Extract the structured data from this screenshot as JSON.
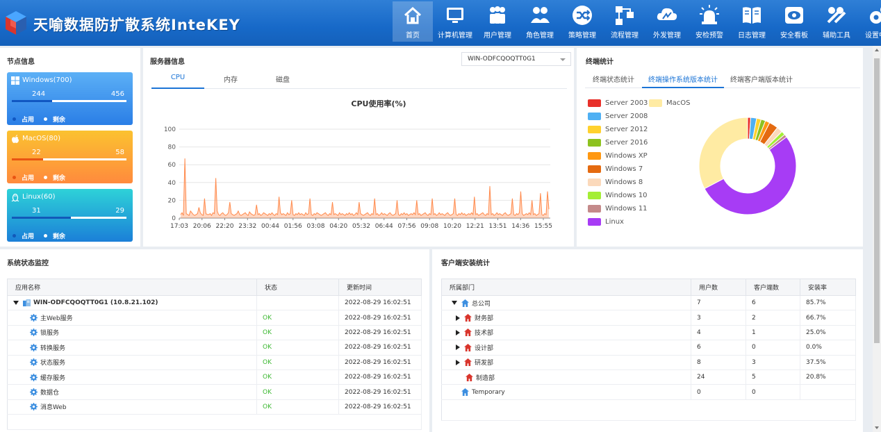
{
  "app": {
    "title": "天喻数据防扩散系统InteKEY"
  },
  "nav": [
    {
      "label": "首页",
      "icon": "home-icon",
      "active": true
    },
    {
      "label": "计算机管理",
      "icon": "monitor-icon",
      "active": false
    },
    {
      "label": "用户管理",
      "icon": "users-icon",
      "active": false
    },
    {
      "label": "角色管理",
      "icon": "roles-icon",
      "active": false
    },
    {
      "label": "策略管理",
      "icon": "shuffle-icon",
      "active": false
    },
    {
      "label": "流程管理",
      "icon": "flow-icon",
      "active": false
    },
    {
      "label": "外发管理",
      "icon": "cloud-icon",
      "active": false
    },
    {
      "label": "安检预警",
      "icon": "alarm-icon",
      "active": false
    },
    {
      "label": "日志管理",
      "icon": "book-icon",
      "active": false
    },
    {
      "label": "安全看板",
      "icon": "dashboard-icon",
      "active": false
    },
    {
      "label": "辅助工具",
      "icon": "tools-icon",
      "active": false
    },
    {
      "label": "设置中心",
      "icon": "settings-icon",
      "active": false
    }
  ],
  "node_info": {
    "title": "节点信息",
    "legend_used": "占用",
    "legend_free": "剩余",
    "cards": [
      {
        "name": "Windows(700)",
        "used": "244",
        "free": "456",
        "used_fraction": 0.349,
        "icon": "windows-icon"
      },
      {
        "name": "MacOS(80)",
        "used": "22",
        "free": "58",
        "used_fraction": 0.275,
        "icon": "apple-icon"
      },
      {
        "name": "Linux(60)",
        "used": "31",
        "free": "29",
        "used_fraction": 0.517,
        "icon": "linux-icon"
      }
    ]
  },
  "server_info": {
    "title": "服务器信息",
    "server_select": "WIN-ODFCQOQTT0G1",
    "tabs": [
      "CPU",
      "内存",
      "磁盘"
    ],
    "active_tab": 0
  },
  "chart_data": [
    {
      "type": "line",
      "title": "CPU使用率(%)",
      "xlabel": "",
      "ylabel": "",
      "ylim": [
        0,
        100
      ],
      "yticks": [
        0,
        20,
        40,
        60,
        80,
        100
      ],
      "x_ticks": [
        "17:03",
        "20:06",
        "22:20",
        "23:32",
        "00:44",
        "01:56",
        "03:08",
        "04:20",
        "05:32",
        "06:44",
        "07:56",
        "09:08",
        "10:20",
        "12:21",
        "13:51",
        "14:36",
        "15:55"
      ],
      "grid": true,
      "color": "#ff8a4c",
      "series": [
        {
          "values": [
            4,
            6,
            3,
            67,
            5,
            4,
            3,
            8,
            6,
            4,
            3,
            4,
            5,
            12,
            6,
            4,
            3,
            22,
            5,
            4,
            4,
            5,
            3,
            6,
            5,
            45,
            8,
            4,
            3,
            5,
            6,
            4,
            3,
            4,
            6,
            18,
            5,
            4,
            3,
            4,
            5,
            8,
            4,
            3,
            4,
            5,
            6,
            4,
            3,
            7,
            5,
            4,
            3,
            4,
            15,
            4,
            5,
            3,
            4,
            6,
            5,
            4,
            3,
            5,
            4,
            6,
            4,
            3,
            5,
            4,
            24,
            6,
            4,
            5,
            4,
            3,
            6,
            4,
            5,
            20,
            4,
            3,
            5,
            4,
            6,
            4,
            5,
            4,
            3,
            6,
            4,
            5,
            22,
            4,
            3,
            5,
            4,
            6,
            5,
            4,
            3,
            4,
            5,
            6,
            4,
            3,
            5,
            4,
            18,
            4,
            5,
            4,
            3,
            6,
            4,
            5,
            4,
            3,
            5,
            4,
            6,
            4,
            5,
            3,
            4,
            6,
            4,
            18,
            5,
            4,
            3,
            4,
            5,
            6,
            4,
            3,
            5,
            4,
            22,
            4,
            5,
            3,
            4,
            6,
            4,
            5,
            4,
            3,
            5,
            6,
            4,
            3,
            4,
            5,
            20,
            4,
            3,
            5,
            4,
            6,
            4,
            5,
            3,
            4,
            5,
            4,
            6,
            4,
            20,
            4,
            5,
            3,
            4,
            5,
            6,
            4,
            3,
            5,
            4,
            22,
            4,
            5,
            3,
            4,
            6,
            4,
            5,
            4,
            3,
            5,
            6,
            4,
            3,
            4,
            5,
            22,
            4,
            3,
            5,
            4,
            6,
            4,
            5,
            3,
            4,
            5,
            4,
            6,
            4,
            24,
            4,
            5,
            3,
            4,
            5,
            6,
            4,
            3,
            5,
            4,
            36,
            4,
            5,
            3,
            4,
            6,
            4,
            5,
            4,
            3,
            5,
            6,
            4,
            3,
            4,
            5,
            22,
            4,
            3,
            5,
            4,
            6,
            30,
            5,
            3,
            4,
            5,
            4,
            6,
            4,
            20,
            4,
            5,
            3,
            4,
            5,
            28,
            4,
            3,
            5,
            4,
            30,
            10
          ]
        }
      ]
    },
    {
      "type": "pie",
      "title": "",
      "donut": true,
      "series": [
        {
          "name": "Server 2003",
          "value": 1.0,
          "color": "#e8302a"
        },
        {
          "name": "Server 2008",
          "value": 2.0,
          "color": "#4fb0f3"
        },
        {
          "name": "Server 2012",
          "value": 1.5,
          "color": "#ffd12e"
        },
        {
          "name": "Server 2016",
          "value": 1.5,
          "color": "#8dc21f"
        },
        {
          "name": "Windows XP",
          "value": 1.5,
          "color": "#ff9812"
        },
        {
          "name": "Windows 7",
          "value": 3.0,
          "color": "#e46a10"
        },
        {
          "name": "Windows 8",
          "value": 2.0,
          "color": "#fbd9bb"
        },
        {
          "name": "Windows 10",
          "value": 1.3,
          "color": "#a4ee36"
        },
        {
          "name": "Windows 11",
          "value": 1.0,
          "color": "#c48a8a"
        },
        {
          "name": "Linux",
          "value": 52.5,
          "color": "#a73cf5"
        },
        {
          "name": "MacOS",
          "value": 32.7,
          "color": "#ffeba3"
        }
      ]
    }
  ],
  "terminal_stats": {
    "title": "终端统计",
    "tabs": [
      "终端状态统计",
      "终端操作系统版本统计",
      "终端客户端版本统计"
    ],
    "active_tab": 1
  },
  "system_monitor": {
    "title": "系统状态监控",
    "columns": [
      "应用名称",
      "状态",
      "更新时间"
    ],
    "root": {
      "name": "WIN-ODFCQOQTT0G1  (10.8.21.102)",
      "status": "",
      "time": "2022-08-29 16:02:51"
    },
    "rows": [
      {
        "name": "主Web服务",
        "status": "OK",
        "time": "2022-08-29 16:02:51"
      },
      {
        "name": "锁服务",
        "status": "OK",
        "time": "2022-08-29 16:02:51"
      },
      {
        "name": "转换服务",
        "status": "OK",
        "time": "2022-08-29 16:02:51"
      },
      {
        "name": "状态服务",
        "status": "OK",
        "time": "2022-08-29 16:02:51"
      },
      {
        "name": "缓存服务",
        "status": "OK",
        "time": "2022-08-29 16:02:51"
      },
      {
        "name": "数据仓",
        "status": "OK",
        "time": "2022-08-29 16:02:51"
      },
      {
        "name": "消息Web",
        "status": "OK",
        "time": "2022-08-29 16:02:51"
      }
    ]
  },
  "client_install": {
    "title": "客户端安装统计",
    "columns": [
      "所属部门",
      "用户数",
      "客户端数",
      "安装率"
    ],
    "rows": [
      {
        "name": "总公司",
        "users": "7",
        "clients": "6",
        "rate": "85.7%",
        "level": 0,
        "toggle": "expanded"
      },
      {
        "name": "财务部",
        "users": "3",
        "clients": "2",
        "rate": "66.7%",
        "level": 1,
        "toggle": "collapsed"
      },
      {
        "name": "技术部",
        "users": "4",
        "clients": "1",
        "rate": "25.0%",
        "level": 1,
        "toggle": "collapsed"
      },
      {
        "name": "设计部",
        "users": "6",
        "clients": "0",
        "rate": "0.0%",
        "level": 1,
        "toggle": "collapsed"
      },
      {
        "name": "研发部",
        "users": "8",
        "clients": "3",
        "rate": "37.5%",
        "level": 1,
        "toggle": "collapsed"
      },
      {
        "name": "制造部",
        "users": "24",
        "clients": "5",
        "rate": "20.8%",
        "level": 1,
        "toggle": "none"
      },
      {
        "name": "Temporary",
        "users": "0",
        "clients": "0",
        "rate": "",
        "level": 0,
        "toggle": "none"
      }
    ]
  }
}
